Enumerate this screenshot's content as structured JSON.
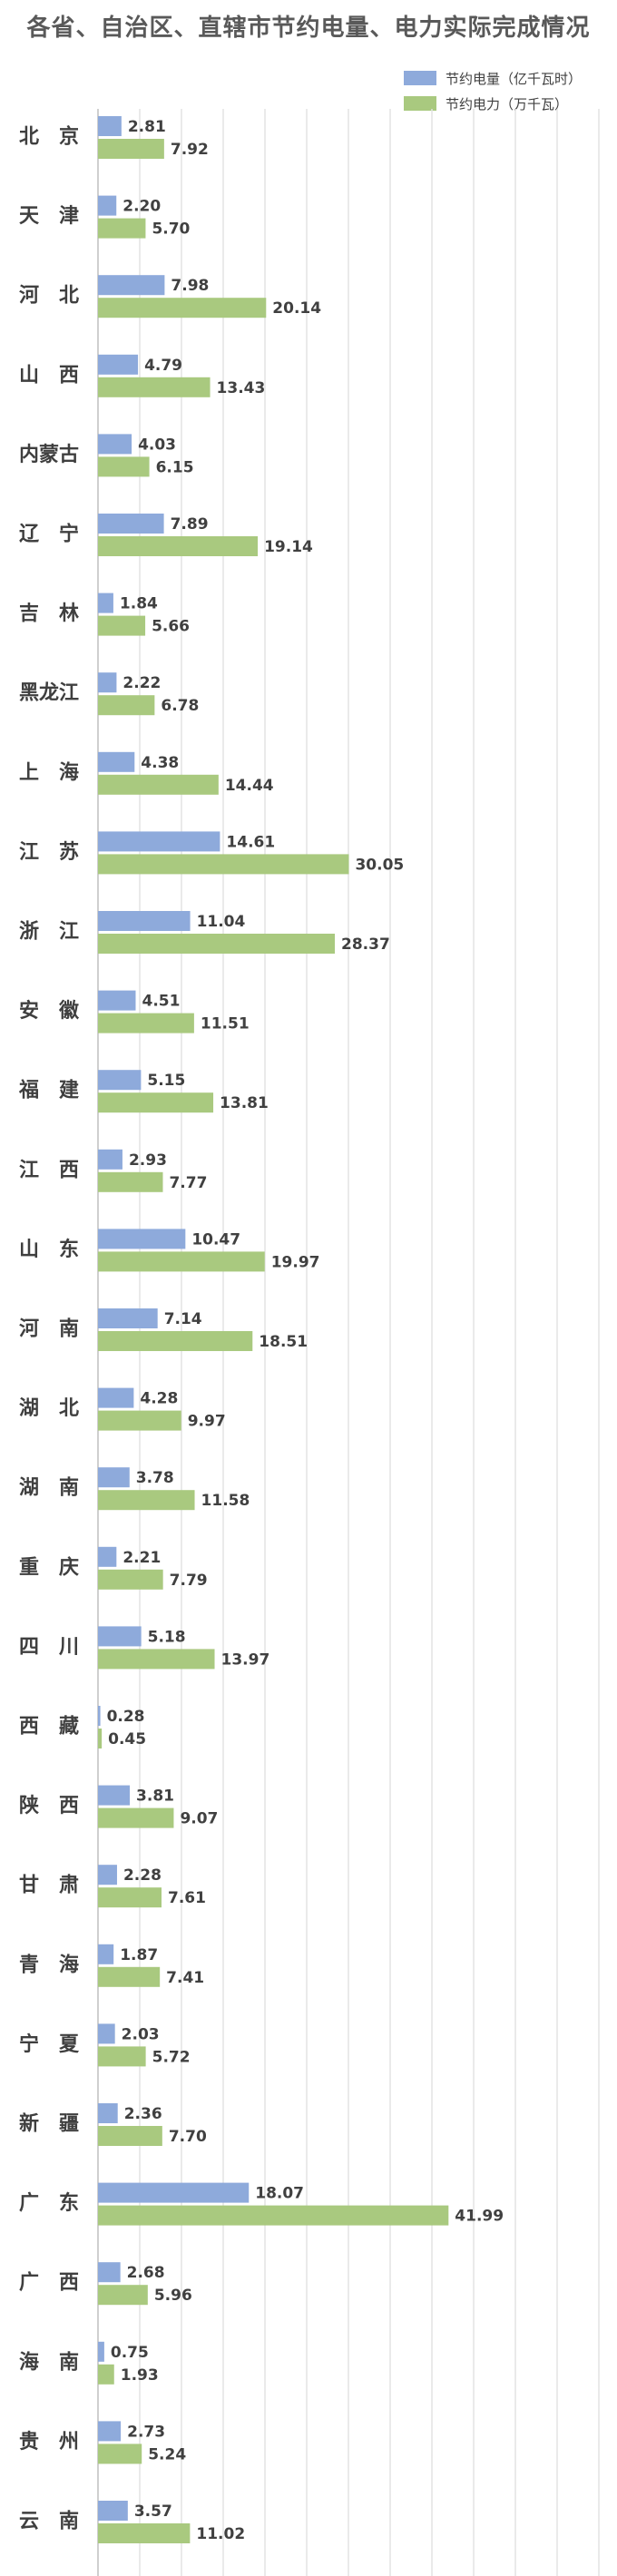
{
  "chart_data": {
    "type": "bar",
    "orientation": "horizontal",
    "title": "各省、自治区、直辖市节约电量、电力实际完成情况",
    "legend_position": "top-right",
    "grid": true,
    "categories": [
      "北京",
      "天津",
      "河北",
      "山西",
      "内蒙古",
      "辽宁",
      "吉林",
      "黑龙江",
      "上海",
      "江苏",
      "浙江",
      "安徽",
      "福建",
      "江西",
      "山东",
      "河南",
      "湖北",
      "湖南",
      "重庆",
      "四川",
      "西藏",
      "陕西",
      "甘肃",
      "青海",
      "宁夏",
      "新疆",
      "广东",
      "广西",
      "海南",
      "贵州",
      "云南"
    ],
    "category_display": [
      "北　京",
      "天　津",
      "河　北",
      "山　西",
      "内蒙古",
      "辽　宁",
      "吉　林",
      "黑龙江",
      "上　海",
      "江　苏",
      "浙　江",
      "安　徽",
      "福　建",
      "江　西",
      "山　东",
      "河　南",
      "湖　北",
      "湖　南",
      "重　庆",
      "四　川",
      "西　藏",
      "陕　西",
      "甘　肃",
      "青　海",
      "宁　夏",
      "新　疆",
      "广　东",
      "广　西",
      "海　南",
      "贵　州",
      "云　南"
    ],
    "xlim": [
      0,
      60
    ],
    "series": [
      {
        "name": "节约电量（亿千瓦时）",
        "color": "#8eaadb",
        "values": [
          2.81,
          2.2,
          7.98,
          4.79,
          4.03,
          7.89,
          1.84,
          2.22,
          4.38,
          14.61,
          11.04,
          4.51,
          5.15,
          2.93,
          10.47,
          7.14,
          4.28,
          3.78,
          2.21,
          5.18,
          0.28,
          3.81,
          2.28,
          1.87,
          2.03,
          2.36,
          18.07,
          2.68,
          0.75,
          2.73,
          3.57
        ]
      },
      {
        "name": "节约电力（万千瓦）",
        "color": "#a9c97f",
        "values": [
          7.92,
          5.7,
          20.14,
          13.43,
          6.15,
          19.14,
          5.66,
          6.78,
          14.44,
          30.05,
          28.37,
          11.51,
          13.81,
          7.77,
          19.97,
          18.51,
          9.97,
          11.58,
          7.79,
          13.97,
          0.45,
          9.07,
          7.61,
          7.41,
          5.72,
          7.7,
          41.99,
          5.96,
          1.93,
          5.24,
          11.02
        ]
      }
    ]
  }
}
